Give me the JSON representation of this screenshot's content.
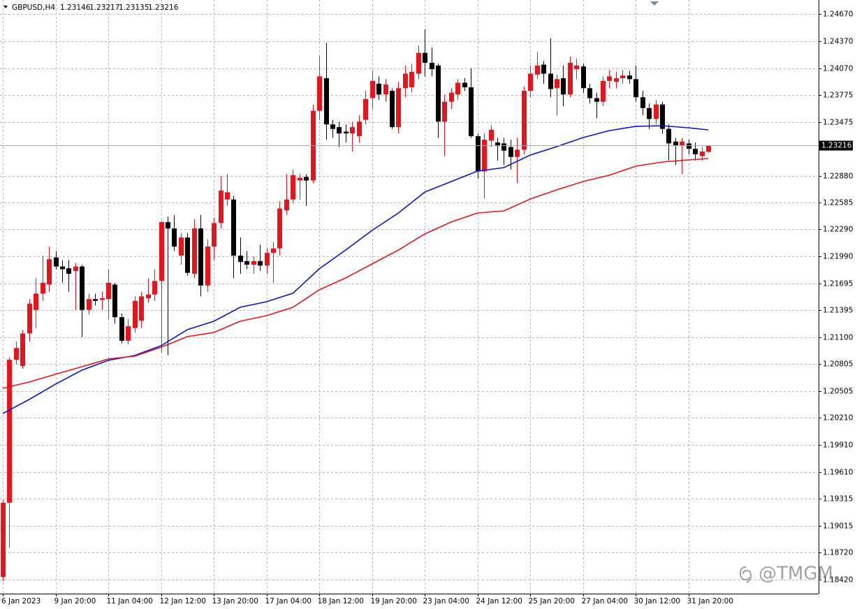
{
  "chart_data": {
    "type": "candlestick",
    "symbol": "GBPUSD,H4",
    "watermark": "@TMGM",
    "grid": true,
    "up_color": "#e8131b",
    "down_color": "#000000",
    "categories": [
      "6 Jan 2023",
      null,
      null,
      null,
      null,
      null,
      null,
      null,
      "9 Jan 20:00",
      null,
      null,
      null,
      null,
      null,
      null,
      null,
      "11 Jan 04:00",
      null,
      null,
      null,
      null,
      null,
      null,
      null,
      "12 Jan 12:00",
      null,
      null,
      null,
      null,
      null,
      null,
      null,
      "13 Jan 20:00",
      null,
      null,
      null,
      null,
      null,
      null,
      null,
      "17 Jan 04:00",
      null,
      null,
      null,
      null,
      null,
      null,
      null,
      "18 Jan 12:00",
      null,
      null,
      null,
      null,
      null,
      null,
      null,
      "19 Jan 20:00",
      null,
      null,
      null,
      null,
      null,
      null,
      null,
      "23 Jan 04:00",
      null,
      null,
      null,
      null,
      null,
      null,
      null,
      "24 Jan 12:00",
      null,
      null,
      null,
      null,
      null,
      null,
      null,
      "25 Jan 20:00",
      null,
      null,
      null,
      null,
      null,
      null,
      null,
      "27 Jan 04:00",
      null,
      null,
      null,
      null,
      null,
      null,
      null,
      "30 Jan 12:00",
      null,
      null,
      null,
      null,
      null,
      null,
      null,
      "31 Jan 20:00",
      null,
      null,
      null
    ],
    "open": [
      1.1845,
      1.1927,
      1.2085,
      1.2078,
      1.2114,
      1.214,
      1.2158,
      1.2168,
      1.2198,
      1.2188,
      1.2186,
      1.2183,
      1.2188,
      1.214,
      1.2152,
      1.2151,
      1.2152,
      1.2168,
      1.2132,
      1.2106,
      1.212,
      1.2128,
      1.2153,
      1.2157,
      1.2172,
      1.2237,
      1.223,
      1.22,
      1.222,
      1.218,
      1.223,
      1.2167,
      1.221,
      1.2236,
      1.2262,
      1.2262,
      1.22,
      1.2194,
      1.219,
      1.2194,
      1.2189,
      1.2203,
      1.2208,
      1.225,
      1.2262,
      1.2283,
      1.2287,
      1.2283,
      1.236,
      1.2396,
      1.2345,
      1.2342,
      1.2337,
      1.2335,
      1.2332,
      1.235,
      1.2374,
      1.239,
      1.2378,
      1.2382,
      1.2342,
      1.2385,
      1.2386,
      1.2401,
      1.2424,
      1.2413,
      1.241,
      1.2348,
      1.237,
      1.2378,
      1.2391,
      1.2386,
      1.2332,
      1.2293,
      1.2327,
      1.2325,
      1.2324,
      1.232,
      1.2309,
      1.2317,
      1.2382,
      1.24,
      1.2411,
      1.2401,
      1.2385,
      1.2396,
      1.2378,
      1.2406,
      1.2409,
      1.2385,
      1.2374,
      1.237,
      1.2393,
      1.2392,
      1.2396,
      1.2399,
      1.2395,
      1.2375,
      1.2363,
      1.2351,
      1.2367,
      1.234,
      1.2326,
      1.2322,
      1.2324,
      1.2318,
      1.231,
      1.23146
    ],
    "high": [
      1.193,
      1.2088,
      1.2105,
      1.2118,
      1.2152,
      1.2175,
      1.22,
      1.221,
      1.2205,
      1.2195,
      1.2195,
      1.2192,
      1.219,
      1.2158,
      1.2158,
      1.216,
      1.2185,
      1.217,
      1.2136,
      1.213,
      1.2155,
      1.216,
      1.2175,
      1.2185,
      1.2238,
      1.2243,
      1.2245,
      1.2225,
      1.2225,
      1.224,
      1.2245,
      1.2218,
      1.2242,
      1.2288,
      1.229,
      1.2266,
      1.222,
      1.2205,
      1.2199,
      1.2212,
      1.2208,
      1.2215,
      1.226,
      1.229,
      1.2295,
      1.229,
      1.229,
      1.2367,
      1.242,
      1.2435,
      1.235,
      1.2348,
      1.2345,
      1.2348,
      1.2355,
      1.2382,
      1.2405,
      1.2398,
      1.2395,
      1.2385,
      1.2392,
      1.241,
      1.2412,
      1.2432,
      1.245,
      1.243,
      1.2412,
      1.2378,
      1.2385,
      1.2395,
      1.2396,
      1.2407,
      1.2335,
      1.2335,
      1.2344,
      1.233,
      1.233,
      1.2328,
      1.233,
      1.2387,
      1.241,
      1.2425,
      1.2415,
      1.244,
      1.24,
      1.241,
      1.242,
      1.2418,
      1.2412,
      1.239,
      1.238,
      1.2398,
      1.2405,
      1.2403,
      1.2405,
      1.2404,
      1.241,
      1.2382,
      1.2368,
      1.2372,
      1.237,
      1.2345,
      1.233,
      1.233,
      1.2328,
      1.2325,
      1.232,
      1.23217
    ],
    "low": [
      1.184,
      1.1877,
      1.208,
      1.2075,
      1.2105,
      1.212,
      1.215,
      1.216,
      1.2185,
      1.217,
      1.216,
      1.214,
      1.211,
      1.2135,
      1.2145,
      1.214,
      1.213,
      1.2125,
      1.2103,
      1.2102,
      1.2115,
      1.212,
      1.2148,
      1.215,
      1.2093,
      1.209,
      1.2205,
      1.219,
      1.2178,
      1.2175,
      1.2155,
      1.216,
      1.2195,
      1.223,
      1.2255,
      1.2175,
      1.218,
      1.2185,
      1.218,
      1.2183,
      1.218,
      1.217,
      1.22,
      1.2245,
      1.2258,
      1.2262,
      1.2255,
      1.228,
      1.235,
      1.2328,
      1.233,
      1.232,
      1.2325,
      1.2315,
      1.2325,
      1.2345,
      1.2362,
      1.2372,
      1.237,
      1.234,
      1.2335,
      1.2375,
      1.238,
      1.2395,
      1.2398,
      1.2398,
      1.233,
      1.231,
      1.2362,
      1.2372,
      1.2382,
      1.233,
      1.2285,
      1.2263,
      1.232,
      1.2305,
      1.23,
      1.2295,
      1.228,
      1.2312,
      1.2375,
      1.2395,
      1.239,
      1.2375,
      1.2355,
      1.2365,
      1.2375,
      1.2395,
      1.238,
      1.2368,
      1.2352,
      1.2365,
      1.2385,
      1.2385,
      1.239,
      1.239,
      1.237,
      1.2355,
      1.234,
      1.2345,
      1.2335,
      1.2305,
      1.23,
      1.229,
      1.2312,
      1.2305,
      1.2305,
      1.23135
    ],
    "close": [
      1.1927,
      1.2085,
      1.2098,
      1.2114,
      1.2147,
      1.2158,
      1.217,
      1.2196,
      1.2188,
      1.2185,
      1.218,
      1.2188,
      1.214,
      1.2152,
      1.215,
      1.2153,
      1.217,
      1.2132,
      1.2106,
      1.2122,
      1.215,
      1.2155,
      1.2157,
      1.2172,
      1.2237,
      1.223,
      1.221,
      1.222,
      1.2181,
      1.223,
      1.2167,
      1.221,
      1.2236,
      1.2272,
      1.227,
      1.22,
      1.2193,
      1.219,
      1.2194,
      1.2189,
      1.2203,
      1.2208,
      1.2252,
      1.2262,
      1.2289,
      1.2286,
      1.2283,
      1.236,
      1.2398,
      1.2345,
      1.234,
      1.2335,
      1.2335,
      1.2342,
      1.2348,
      1.2373,
      1.2393,
      1.2378,
      1.2389,
      1.2342,
      1.2385,
      1.2401,
      1.2403,
      1.2424,
      1.2413,
      1.2406,
      1.2348,
      1.237,
      1.238,
      1.2391,
      1.2386,
      1.2332,
      1.2293,
      1.2328,
      1.2339,
      1.2321,
      1.2316,
      1.2309,
      1.2317,
      1.2382,
      1.2401,
      1.241,
      1.2401,
      1.2384,
      1.2395,
      1.2378,
      1.2413,
      1.241,
      1.2385,
      1.2374,
      1.237,
      1.2393,
      1.2398,
      1.2396,
      1.2399,
      1.2395,
      1.2375,
      1.2363,
      1.2351,
      1.2367,
      1.234,
      1.2324,
      1.2322,
      1.2326,
      1.2318,
      1.2312,
      1.2315,
      1.23216
    ],
    "moving_averages": [
      {
        "color": "#0a14c8",
        "x": [
          0,
          4,
          8,
          12,
          16,
          20,
          24,
          28,
          32,
          36,
          40,
          44,
          48,
          52,
          56,
          60,
          64,
          68,
          72,
          76,
          80,
          84,
          88,
          92,
          96,
          100,
          104,
          107
        ],
        "values": [
          1.20256,
          1.20411,
          1.2058,
          1.20735,
          1.20843,
          1.20897,
          1.21005,
          1.21182,
          1.21275,
          1.21429,
          1.21491,
          1.21584,
          1.21854,
          1.22062,
          1.22278,
          1.22471,
          1.22702,
          1.22818,
          1.22934,
          1.22972,
          1.23111,
          1.23204,
          1.23304,
          1.23381,
          1.23428,
          1.23435,
          1.23412,
          1.23389
        ]
      },
      {
        "color": "#e8131b",
        "x": [
          0,
          4,
          8,
          12,
          16,
          20,
          24,
          28,
          32,
          36,
          40,
          44,
          48,
          52,
          56,
          60,
          64,
          68,
          72,
          76,
          80,
          84,
          88,
          92,
          96,
          100,
          104,
          107
        ],
        "values": [
          1.20534,
          1.20604,
          1.20689,
          1.20773,
          1.20858,
          1.20889,
          1.20989,
          1.21105,
          1.21151,
          1.21275,
          1.21337,
          1.21429,
          1.21622,
          1.21753,
          1.21908,
          1.22062,
          1.22239,
          1.22371,
          1.22471,
          1.22494,
          1.22625,
          1.22726,
          1.22818,
          1.22888,
          1.22988,
          1.23034,
          1.23057,
          1.23073
        ]
      }
    ],
    "ylim": [
      1.18266,
      1.24824
    ],
    "yticks": [
      {
        "value": 1.2467,
        "label": "1.24670"
      },
      {
        "value": 1.2437,
        "label": "1.24370"
      },
      {
        "value": 1.2407,
        "label": "1.24070"
      },
      1.23775,
      1.23475,
      {
        "value": 1.2288,
        "label": "1.22880"
      },
      1.22585,
      {
        "value": 1.2229,
        "label": "1.22290"
      },
      {
        "value": 1.2199,
        "label": "1.21990"
      },
      1.21695,
      1.21395,
      {
        "value": 1.211,
        "label": "1.21100"
      },
      1.20805,
      1.20505,
      {
        "value": 1.2021,
        "label": "1.20210"
      },
      {
        "value": 1.1991,
        "label": "1.19910"
      },
      {
        "value": 1.1961,
        "label": "1.19610"
      },
      1.19315,
      1.19015,
      {
        "value": 1.1872,
        "label": "1.18720"
      },
      {
        "value": 1.1842,
        "label": "1.18420"
      }
    ]
  }
}
